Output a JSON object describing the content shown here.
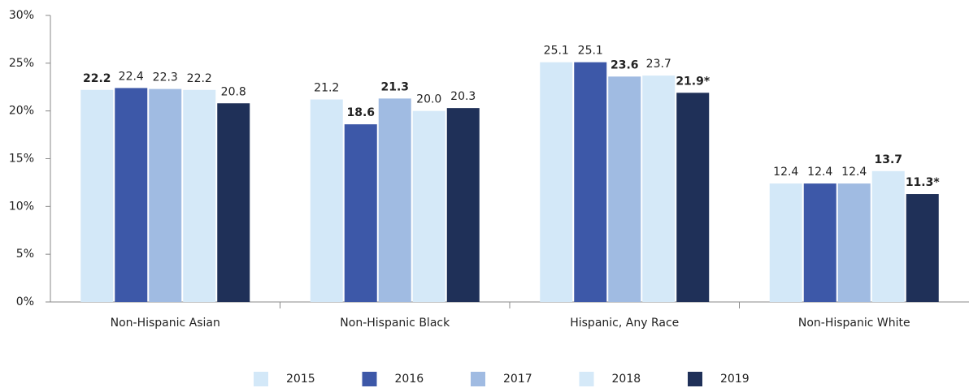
{
  "chart_data": {
    "type": "bar",
    "categories": [
      "Non-Hispanic Asian",
      "Non-Hispanic Black",
      "Hispanic, Any Race",
      "Non-Hispanic White"
    ],
    "series": [
      {
        "name": "2015",
        "color": "#d3e8f8",
        "values": [
          22.2,
          21.2,
          25.1,
          12.4
        ],
        "value_labels": [
          "22.2",
          "21.2",
          "25.1",
          "12.4"
        ],
        "bold": [
          true,
          false,
          false,
          false
        ]
      },
      {
        "name": "2016",
        "color": "#3d58a8",
        "values": [
          22.4,
          18.6,
          25.1,
          12.4
        ],
        "value_labels": [
          "22.4",
          "18.6",
          "25.1",
          "12.4"
        ],
        "bold": [
          false,
          true,
          false,
          false
        ]
      },
      {
        "name": "2017",
        "color": "#a0bbe2",
        "values": [
          22.3,
          21.3,
          23.6,
          12.4
        ],
        "value_labels": [
          "22.3",
          "21.3",
          "23.6",
          "12.4"
        ],
        "bold": [
          false,
          true,
          true,
          false
        ]
      },
      {
        "name": "2018",
        "color": "#d5e9f8",
        "values": [
          22.2,
          20.0,
          23.7,
          13.7
        ],
        "value_labels": [
          "22.2",
          "20.0",
          "23.7",
          "13.7"
        ],
        "bold": [
          false,
          false,
          false,
          true
        ]
      },
      {
        "name": "2019",
        "color": "#1f3058",
        "values": [
          20.8,
          20.3,
          21.9,
          11.3
        ],
        "value_labels": [
          "20.8",
          "20.3",
          "21.9*",
          "11.3*"
        ],
        "bold": [
          false,
          false,
          true,
          true
        ]
      }
    ],
    "ylim": [
      0,
      30
    ],
    "yticks": [
      {
        "value": 0,
        "label": "0%"
      },
      {
        "value": 5,
        "label": "5%"
      },
      {
        "value": 10,
        "label": "10%"
      },
      {
        "value": 15,
        "label": "15%"
      },
      {
        "value": 20,
        "label": "20%"
      },
      {
        "value": 25,
        "label": "25%"
      },
      {
        "value": 30,
        "label": "30%"
      }
    ],
    "grid": false,
    "legend": "bottom"
  }
}
